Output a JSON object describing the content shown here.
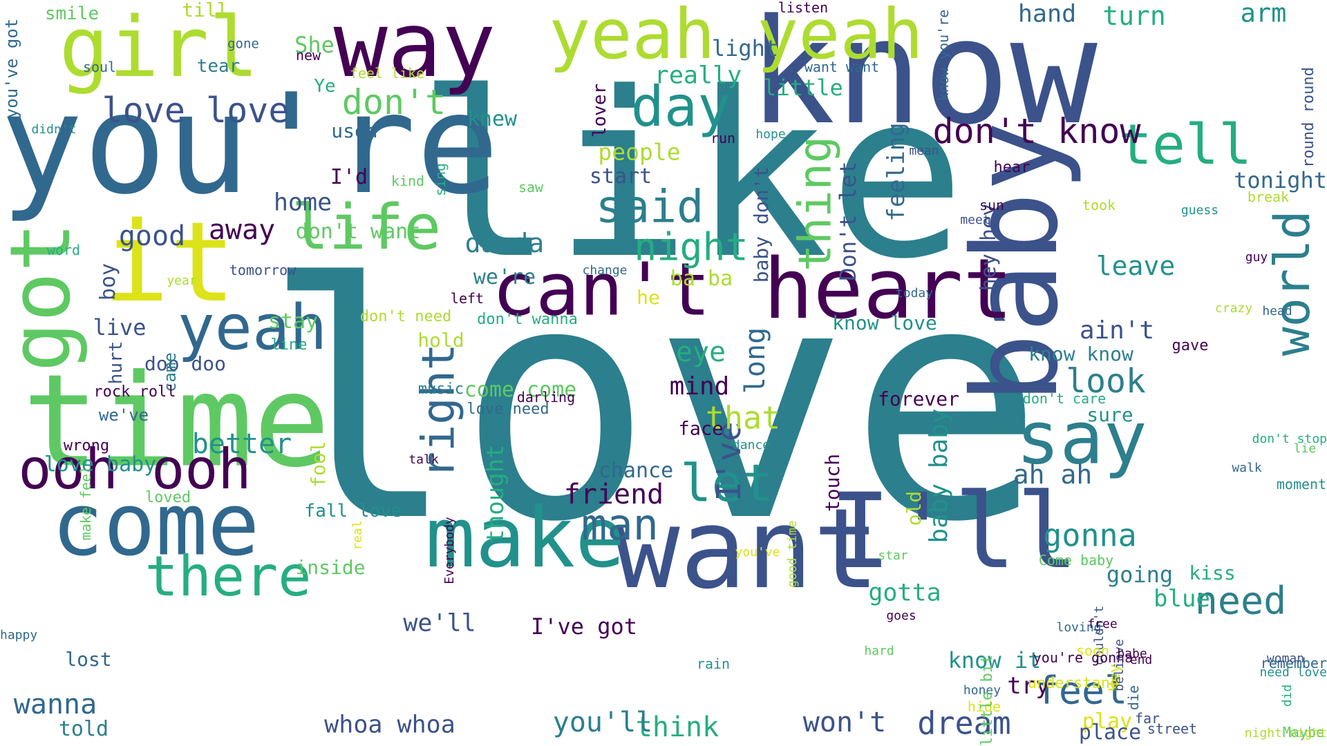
{
  "word_cloud": {
    "background": "#ffffff",
    "palette": [
      "#440154",
      "#3b528b",
      "#31688e",
      "#2c7f8d",
      "#21918c",
      "#25ad82",
      "#5ec962",
      "#addc30",
      "#dce318"
    ],
    "words": [
      {
        "text": "love",
        "color": "#2c7f8d",
        "rotated": false
      },
      {
        "text": "like",
        "color": "#2c7f8d",
        "rotated": false
      },
      {
        "text": "know",
        "color": "#3b528b",
        "rotated": false
      },
      {
        "text": "you're",
        "color": "#31688e",
        "rotated": false
      },
      {
        "text": "baby",
        "color": "#3b528b",
        "rotated": true
      },
      {
        "text": "time",
        "color": "#5ec962",
        "rotated": false
      },
      {
        "text": "want",
        "color": "#3b528b",
        "rotated": false
      },
      {
        "text": "make",
        "color": "#21918c",
        "rotated": false
      },
      {
        "text": "come",
        "color": "#31688e",
        "rotated": false
      },
      {
        "text": "I'll",
        "color": "#3b528b",
        "rotated": false
      },
      {
        "text": "heart",
        "color": "#440154",
        "rotated": false
      },
      {
        "text": "can't",
        "color": "#440154",
        "rotated": false
      },
      {
        "text": "way",
        "color": "#440154",
        "rotated": false
      },
      {
        "text": "girl",
        "color": "#addc30",
        "rotated": false
      },
      {
        "text": "yeah yeah",
        "color": "#addc30",
        "rotated": false
      },
      {
        "text": "it",
        "color": "#dce318",
        "rotated": false
      },
      {
        "text": "got",
        "color": "#5ec962",
        "rotated": true
      },
      {
        "text": "say",
        "color": "#2c7f8d",
        "rotated": false
      },
      {
        "text": "yeah",
        "color": "#31688e",
        "rotated": false
      },
      {
        "text": "ooh ooh",
        "color": "#440154",
        "rotated": false
      },
      {
        "text": "life",
        "color": "#5ec962",
        "rotated": false
      },
      {
        "text": "day",
        "color": "#21918c",
        "rotated": false
      },
      {
        "text": "thing",
        "color": "#5ec962",
        "rotated": true
      },
      {
        "text": "there",
        "color": "#25ad82",
        "rotated": false
      },
      {
        "text": "let",
        "color": "#21918c",
        "rotated": false
      },
      {
        "text": "said",
        "color": "#2c7f8d",
        "rotated": false
      },
      {
        "text": "right",
        "color": "#31688e",
        "rotated": true
      },
      {
        "text": "tell",
        "color": "#25ad82",
        "rotated": false
      },
      {
        "text": "world",
        "color": "#2c7f8d",
        "rotated": true
      },
      {
        "text": "don't know",
        "color": "#440154",
        "rotated": false
      },
      {
        "text": "man",
        "color": "#31688e",
        "rotated": false
      },
      {
        "text": "feel",
        "color": "#31688e",
        "rotated": false
      },
      {
        "text": "night",
        "color": "#25ad82",
        "rotated": false
      },
      {
        "text": "need",
        "color": "#2c7f8d",
        "rotated": false
      },
      {
        "text": "dream",
        "color": "#3b528b",
        "rotated": false
      },
      {
        "text": "love love",
        "color": "#3b528b",
        "rotated": false
      },
      {
        "text": "don't",
        "color": "#5ec962",
        "rotated": false
      },
      {
        "text": "gonna",
        "color": "#21918c",
        "rotated": false
      },
      {
        "text": "look",
        "color": "#2c7f8d",
        "rotated": false
      },
      {
        "text": "I've",
        "color": "#3b528b",
        "rotated": true
      },
      {
        "text": "friend",
        "color": "#440154",
        "rotated": false
      },
      {
        "text": "eye",
        "color": "#25ad82",
        "rotated": false
      },
      {
        "text": "wanna",
        "color": "#31688e",
        "rotated": false
      },
      {
        "text": "think",
        "color": "#25ad82",
        "rotated": false
      },
      {
        "text": "good",
        "color": "#3b528b",
        "rotated": false
      },
      {
        "text": "away",
        "color": "#440154",
        "rotated": false
      },
      {
        "text": "that",
        "color": "#addc30",
        "rotated": false
      },
      {
        "text": "you'll",
        "color": "#2c7f8d",
        "rotated": false
      },
      {
        "text": "won't",
        "color": "#3b528b",
        "rotated": false
      },
      {
        "text": "whoa whoa",
        "color": "#3b528b",
        "rotated": false
      },
      {
        "text": "better",
        "color": "#21918c",
        "rotated": false
      },
      {
        "text": "mind",
        "color": "#440154",
        "rotated": false
      },
      {
        "text": "turn",
        "color": "#25ad82",
        "rotated": false
      },
      {
        "text": "hand",
        "color": "#31688e",
        "rotated": false
      },
      {
        "text": "tonight",
        "color": "#31688e",
        "rotated": false
      },
      {
        "text": "really",
        "color": "#25ad82",
        "rotated": false
      },
      {
        "text": "little",
        "color": "#25ad82",
        "rotated": false
      },
      {
        "text": "light",
        "color": "#31688e",
        "rotated": false
      },
      {
        "text": "She",
        "color": "#5ec962",
        "rotated": false
      },
      {
        "text": "arm",
        "color": "#21918c",
        "rotated": false
      },
      {
        "text": "smile",
        "color": "#5ec962",
        "rotated": false
      },
      {
        "text": "till",
        "color": "#addc30",
        "rotated": false
      },
      {
        "text": "tear",
        "color": "#2c7f8d",
        "rotated": false
      },
      {
        "text": "knew",
        "color": "#21918c",
        "rotated": false
      },
      {
        "text": "used",
        "color": "#31688e",
        "rotated": false
      },
      {
        "text": "I'd",
        "color": "#440154",
        "rotated": false
      },
      {
        "text": "home",
        "color": "#3b528b",
        "rotated": false
      },
      {
        "text": "people",
        "color": "#addc30",
        "rotated": false
      },
      {
        "text": "start",
        "color": "#3b528b",
        "rotated": false
      },
      {
        "text": "da da",
        "color": "#2c7f8d",
        "rotated": false
      },
      {
        "text": "don't want",
        "color": "#5ec962",
        "rotated": false
      },
      {
        "text": "we're",
        "color": "#2c7f8d",
        "rotated": false
      },
      {
        "text": "ba ba",
        "color": "#addc30",
        "rotated": false
      },
      {
        "text": "he",
        "color": "#dce318",
        "rotated": false
      },
      {
        "text": "stay",
        "color": "#5ec962",
        "rotated": false
      },
      {
        "text": "live",
        "color": "#3b528b",
        "rotated": false
      },
      {
        "text": "boy",
        "color": "#3b528b",
        "rotated": true
      },
      {
        "text": "hold",
        "color": "#addc30",
        "rotated": false
      },
      {
        "text": "come come",
        "color": "#5ec962",
        "rotated": false
      },
      {
        "text": "long",
        "color": "#31688e",
        "rotated": true
      },
      {
        "text": "leave",
        "color": "#21918c",
        "rotated": false
      },
      {
        "text": "ain't",
        "color": "#3b528b",
        "rotated": false
      },
      {
        "text": "know love",
        "color": "#21918c",
        "rotated": false
      },
      {
        "text": "know know",
        "color": "#2c7f8d",
        "rotated": false
      },
      {
        "text": "feeling",
        "color": "#31688e",
        "rotated": true
      },
      {
        "text": "Don't let",
        "color": "#3b528b",
        "rotated": true
      },
      {
        "text": "hey hey",
        "color": "#3b528b",
        "rotated": true
      },
      {
        "text": "baby don't",
        "color": "#3b528b",
        "rotated": true
      },
      {
        "text": "lover",
        "color": "#440154",
        "rotated": true
      },
      {
        "text": "face",
        "color": "#440154",
        "rotated": false
      },
      {
        "text": "chance",
        "color": "#31688e",
        "rotated": false
      },
      {
        "text": "thought",
        "color": "#25ad82",
        "rotated": true
      },
      {
        "text": "touch",
        "color": "#440154",
        "rotated": true
      },
      {
        "text": "baby baby",
        "color": "#21918c",
        "rotated": true
      },
      {
        "text": "old",
        "color": "#addc30",
        "rotated": true
      },
      {
        "text": "ah ah",
        "color": "#31688e",
        "rotated": false
      },
      {
        "text": "forever",
        "color": "#440154",
        "rotated": false
      },
      {
        "text": "sure",
        "color": "#21918c",
        "rotated": false
      },
      {
        "text": "going",
        "color": "#2c7f8d",
        "rotated": false
      },
      {
        "text": "kiss",
        "color": "#25ad82",
        "rotated": false
      },
      {
        "text": "blue",
        "color": "#25ad82",
        "rotated": false
      },
      {
        "text": "gotta",
        "color": "#25ad82",
        "rotated": false
      },
      {
        "text": "we'll",
        "color": "#3b528b",
        "rotated": false
      },
      {
        "text": "I've got",
        "color": "#440154",
        "rotated": false
      },
      {
        "text": "know it",
        "color": "#21918c",
        "rotated": false
      },
      {
        "text": "try",
        "color": "#440154",
        "rotated": false
      },
      {
        "text": "play",
        "color": "#dce318",
        "rotated": false
      },
      {
        "text": "place",
        "color": "#3b528b",
        "rotated": false
      },
      {
        "text": "fall love",
        "color": "#21918c",
        "rotated": false
      },
      {
        "text": "fool",
        "color": "#addc30",
        "rotated": true
      },
      {
        "text": "inside",
        "color": "#5ec962",
        "rotated": false
      },
      {
        "text": "love baby",
        "color": "#21918c",
        "rotated": false
      },
      {
        "text": "lost",
        "color": "#31688e",
        "rotated": false
      },
      {
        "text": "told",
        "color": "#2c7f8d",
        "rotated": false
      },
      {
        "text": "doo doo",
        "color": "#3b528b",
        "rotated": false
      },
      {
        "text": "hurt",
        "color": "#3b528b",
        "rotated": true
      },
      {
        "text": "came",
        "color": "#2c7f8d",
        "rotated": true
      },
      {
        "text": "rock roll",
        "color": "#440154",
        "rotated": false
      },
      {
        "text": "we've",
        "color": "#31688e",
        "rotated": false
      },
      {
        "text": "wrong",
        "color": "#440154",
        "rotated": false
      },
      {
        "text": "love need",
        "color": "#31688e",
        "rotated": false
      },
      {
        "text": "darling",
        "color": "#440154",
        "rotated": false
      },
      {
        "text": "music",
        "color": "#2c7f8d",
        "rotated": false
      },
      {
        "text": "don't care",
        "color": "#25ad82",
        "rotated": false
      },
      {
        "text": "don't need",
        "color": "#addc30",
        "rotated": false
      },
      {
        "text": "don't wanna",
        "color": "#25ad82",
        "rotated": false
      },
      {
        "text": "left",
        "color": "#440154",
        "rotated": false
      },
      {
        "text": "line",
        "color": "#25ad82",
        "rotated": false
      },
      {
        "text": "you've got",
        "color": "#31688e",
        "rotated": true
      },
      {
        "text": "soul",
        "color": "#31688e",
        "rotated": false
      },
      {
        "text": "gone",
        "color": "#31688e",
        "rotated": false
      },
      {
        "text": "new",
        "color": "#440154",
        "rotated": false
      },
      {
        "text": "feel like",
        "color": "#addc30",
        "rotated": false
      },
      {
        "text": "Ye",
        "color": "#25ad82",
        "rotated": false
      },
      {
        "text": "didn't",
        "color": "#21918c",
        "rotated": false
      },
      {
        "text": "listen",
        "color": "#440154",
        "rotated": false
      },
      {
        "text": "want want",
        "color": "#31688e",
        "rotated": false
      },
      {
        "text": "know you're",
        "color": "#31688e",
        "rotated": true
      },
      {
        "text": "round round",
        "color": "#3b528b",
        "rotated": true
      },
      {
        "text": "hope",
        "color": "#21918c",
        "rotated": false
      },
      {
        "text": "run",
        "color": "#440154",
        "rotated": false
      },
      {
        "text": "mean",
        "color": "#3b528b",
        "rotated": false
      },
      {
        "text": "hear",
        "color": "#440154",
        "rotated": false
      },
      {
        "text": "sing",
        "color": "#25ad82",
        "rotated": true
      },
      {
        "text": "kind",
        "color": "#5ec962",
        "rotated": false
      },
      {
        "text": "saw",
        "color": "#5ec962",
        "rotated": false
      },
      {
        "text": "took",
        "color": "#addc30",
        "rotated": false
      },
      {
        "text": "break",
        "color": "#addc30",
        "rotated": false
      },
      {
        "text": "sun",
        "color": "#440154",
        "rotated": false
      },
      {
        "text": "guess",
        "color": "#21918c",
        "rotated": false
      },
      {
        "text": "meet",
        "color": "#3b528b",
        "rotated": false
      },
      {
        "text": "guy",
        "color": "#440154",
        "rotated": false
      },
      {
        "text": "word",
        "color": "#25ad82",
        "rotated": false
      },
      {
        "text": "year",
        "color": "#addc30",
        "rotated": false
      },
      {
        "text": "tomorrow",
        "color": "#3b528b",
        "rotated": false
      },
      {
        "text": "change",
        "color": "#31688e",
        "rotated": false
      },
      {
        "text": "today",
        "color": "#31688e",
        "rotated": false
      },
      {
        "text": "head",
        "color": "#31688e",
        "rotated": false
      },
      {
        "text": "crazy",
        "color": "#addc30",
        "rotated": false
      },
      {
        "text": "gave",
        "color": "#440154",
        "rotated": false
      },
      {
        "text": "don't stop",
        "color": "#25ad82",
        "rotated": false
      },
      {
        "text": "lie",
        "color": "#5ec962",
        "rotated": false
      },
      {
        "text": "walk",
        "color": "#31688e",
        "rotated": false
      },
      {
        "text": "moment",
        "color": "#21918c",
        "rotated": false
      },
      {
        "text": "dance",
        "color": "#21918c",
        "rotated": false
      },
      {
        "text": "talk",
        "color": "#440154",
        "rotated": false
      },
      {
        "text": "loved",
        "color": "#5ec962",
        "rotated": false
      },
      {
        "text": "make feel",
        "color": "#5ec962",
        "rotated": true
      },
      {
        "text": "real",
        "color": "#dce318",
        "rotated": true
      },
      {
        "text": "Everybody",
        "color": "#440154",
        "rotated": true
      },
      {
        "text": "you've",
        "color": "#dce318",
        "rotated": false
      },
      {
        "text": "good time",
        "color": "#addc30",
        "rotated": true
      },
      {
        "text": "star",
        "color": "#5ec962",
        "rotated": false
      },
      {
        "text": "Come baby",
        "color": "#5ec962",
        "rotated": false
      },
      {
        "text": "loving",
        "color": "#31688e",
        "rotated": false
      },
      {
        "text": "couldn't",
        "color": "#3b528b",
        "rotated": true
      },
      {
        "text": "soon",
        "color": "#dce318",
        "rotated": false
      },
      {
        "text": "rain",
        "color": "#21918c",
        "rotated": false
      },
      {
        "text": "hard",
        "color": "#5ec962",
        "rotated": false
      },
      {
        "text": "goes",
        "color": "#440154",
        "rotated": false
      },
      {
        "text": "free",
        "color": "#440154",
        "rotated": false
      },
      {
        "text": "you're gonna",
        "color": "#440154",
        "rotated": false
      },
      {
        "text": "understand",
        "color": "#dce318",
        "rotated": false
      },
      {
        "text": "end",
        "color": "#440154",
        "rotated": false
      },
      {
        "text": "remember",
        "color": "#31688e",
        "rotated": false
      },
      {
        "text": "need love",
        "color": "#21918c",
        "rotated": false
      },
      {
        "text": "Hey",
        "color": "#dce318",
        "rotated": true
      },
      {
        "text": "honey",
        "color": "#31688e",
        "rotated": false
      },
      {
        "text": "hide",
        "color": "#dce318",
        "rotated": false
      },
      {
        "text": "little bit",
        "color": "#5ec962",
        "rotated": true
      },
      {
        "text": "believe",
        "color": "#3b528b",
        "rotated": true
      },
      {
        "text": "babe",
        "color": "#440154",
        "rotated": false
      },
      {
        "text": "die",
        "color": "#31688e",
        "rotated": true
      },
      {
        "text": "far",
        "color": "#3b528b",
        "rotated": false
      },
      {
        "text": "street",
        "color": "#3b528b",
        "rotated": false
      },
      {
        "text": "woman",
        "color": "#3b528b",
        "rotated": false
      },
      {
        "text": "did",
        "color": "#25ad82",
        "rotated": true
      },
      {
        "text": "Maybe",
        "color": "#5ec962",
        "rotated": false
      },
      {
        "text": "night night",
        "color": "#addc30",
        "rotated": false
      },
      {
        "text": "happy",
        "color": "#31688e",
        "rotated": false
      }
    ]
  }
}
